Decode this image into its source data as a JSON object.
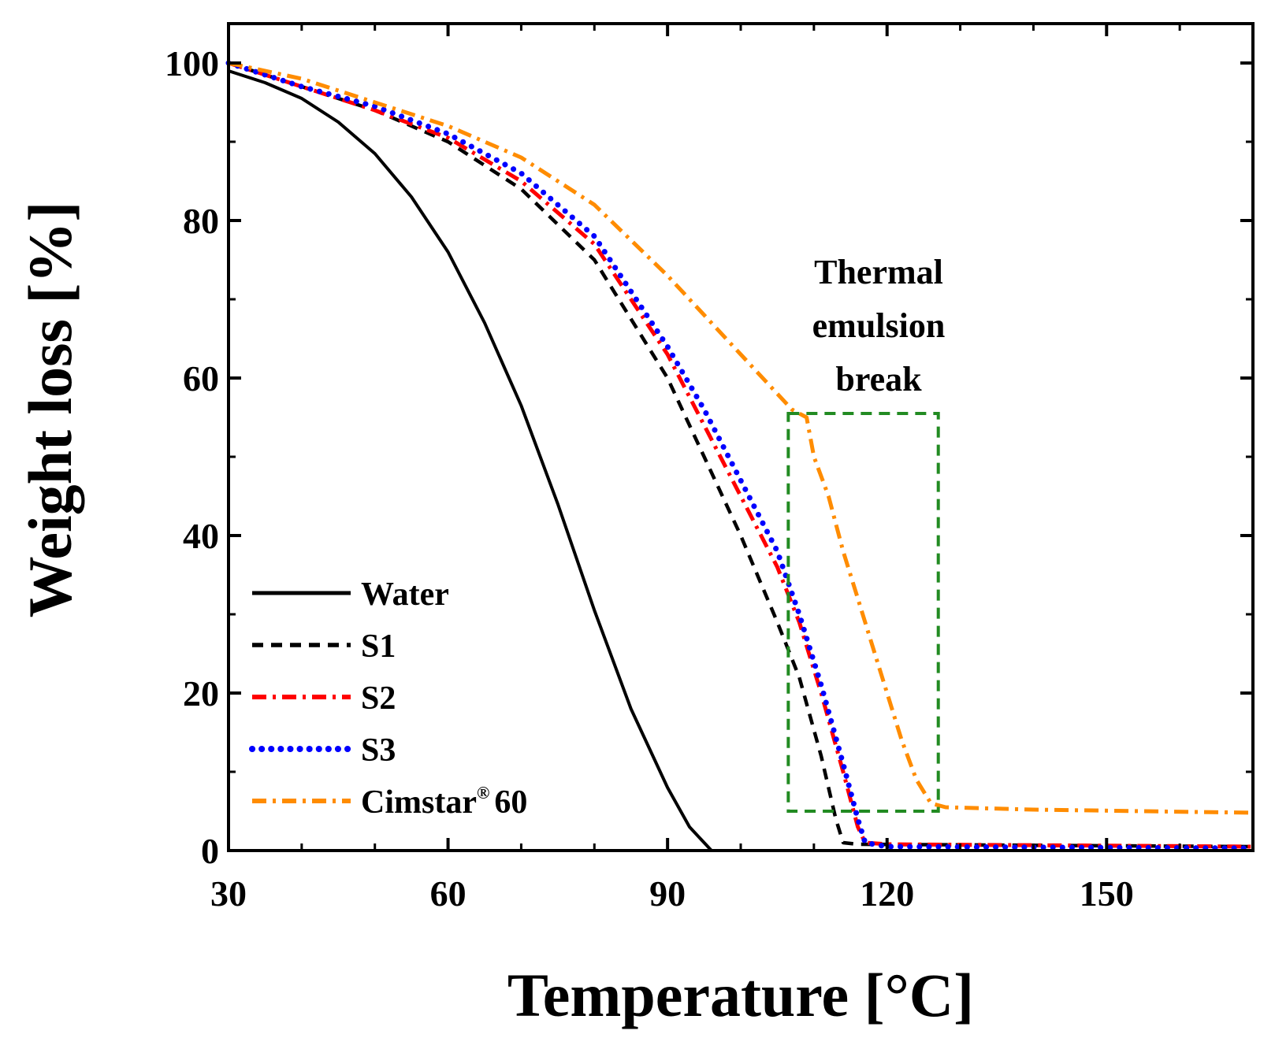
{
  "chart_data": {
    "type": "line",
    "title": "",
    "xlabel": "Temperature [°C]",
    "ylabel": "Weight loss [%]",
    "xlim": [
      30,
      170
    ],
    "ylim": [
      0,
      105
    ],
    "xticks": [
      30,
      60,
      90,
      120,
      150
    ],
    "xtick_labels": [
      "30",
      "60",
      "90",
      "120",
      "150"
    ],
    "yticks": [
      0,
      20,
      40,
      60,
      80,
      100
    ],
    "ytick_labels": [
      "0",
      "20",
      "40",
      "60",
      "80",
      "100"
    ],
    "grid": false,
    "legend_position": "bottom-left",
    "series": [
      {
        "name": "Water",
        "label": "Water",
        "label_sup": "",
        "color": "#000000",
        "style": "solid",
        "points": [
          [
            30,
            99
          ],
          [
            35,
            97.5
          ],
          [
            40,
            95.5
          ],
          [
            45,
            92.5
          ],
          [
            50,
            88.5
          ],
          [
            55,
            83
          ],
          [
            60,
            76
          ],
          [
            65,
            67
          ],
          [
            70,
            56.5
          ],
          [
            75,
            44
          ],
          [
            80,
            30.5
          ],
          [
            85,
            18
          ],
          [
            90,
            8
          ],
          [
            93,
            3
          ],
          [
            96,
            0
          ],
          [
            110,
            0
          ]
        ]
      },
      {
        "name": "S1",
        "label": "S1",
        "label_sup": "",
        "color": "#000000",
        "style": "dashed",
        "points": [
          [
            30,
            100
          ],
          [
            40,
            97
          ],
          [
            50,
            94
          ],
          [
            60,
            90
          ],
          [
            70,
            84
          ],
          [
            80,
            75
          ],
          [
            90,
            60
          ],
          [
            95,
            50
          ],
          [
            100,
            40
          ],
          [
            105,
            29
          ],
          [
            108,
            22
          ],
          [
            111,
            12
          ],
          [
            113,
            4
          ],
          [
            114,
            1
          ],
          [
            116,
            0.8
          ],
          [
            170,
            0.5
          ]
        ]
      },
      {
        "name": "S2",
        "label": "S2",
        "label_sup": "",
        "color": "#ff0000",
        "style": "dashdot",
        "points": [
          [
            30,
            100
          ],
          [
            40,
            97
          ],
          [
            50,
            94
          ],
          [
            60,
            90.5
          ],
          [
            70,
            85
          ],
          [
            80,
            77
          ],
          [
            90,
            63
          ],
          [
            95,
            54
          ],
          [
            100,
            45
          ],
          [
            105,
            36
          ],
          [
            108,
            29
          ],
          [
            111,
            20
          ],
          [
            114,
            10
          ],
          [
            116,
            3
          ],
          [
            117,
            1
          ],
          [
            120,
            0.8
          ],
          [
            170,
            0.5
          ]
        ]
      },
      {
        "name": "S3",
        "label": "S3",
        "label_sup": "",
        "color": "#0000ff",
        "style": "dotted",
        "points": [
          [
            30,
            100
          ],
          [
            40,
            97
          ],
          [
            50,
            94.5
          ],
          [
            60,
            91
          ],
          [
            70,
            86
          ],
          [
            80,
            78
          ],
          [
            90,
            64
          ],
          [
            95,
            56
          ],
          [
            100,
            47
          ],
          [
            105,
            38
          ],
          [
            108,
            30
          ],
          [
            111,
            21
          ],
          [
            114,
            11
          ],
          [
            116,
            4
          ],
          [
            117,
            1
          ],
          [
            120,
            0.5
          ],
          [
            170,
            0.3
          ]
        ]
      },
      {
        "name": "Cimstar 60",
        "label": "Cimstar",
        "label_sup": "®",
        "label_suffix": "60",
        "color": "#ff8c00",
        "style": "dashdot",
        "points": [
          [
            30,
            100
          ],
          [
            40,
            98
          ],
          [
            50,
            95
          ],
          [
            60,
            92
          ],
          [
            70,
            88
          ],
          [
            80,
            82
          ],
          [
            90,
            73
          ],
          [
            100,
            63
          ],
          [
            107,
            56
          ],
          [
            109,
            55
          ],
          [
            110,
            50
          ],
          [
            112,
            45
          ],
          [
            114,
            38
          ],
          [
            116,
            32
          ],
          [
            118,
            26
          ],
          [
            120,
            20
          ],
          [
            122,
            14
          ],
          [
            124,
            9
          ],
          [
            126,
            6
          ],
          [
            128,
            5.5
          ],
          [
            140,
            5.2
          ],
          [
            170,
            4.8
          ]
        ]
      }
    ],
    "annotations": {
      "lines": [
        "Thermal",
        "emulsion",
        "break"
      ],
      "box": {
        "x_range": [
          106.5,
          127
        ],
        "y_range": [
          5,
          55.5
        ],
        "color": "#228b22"
      }
    }
  }
}
